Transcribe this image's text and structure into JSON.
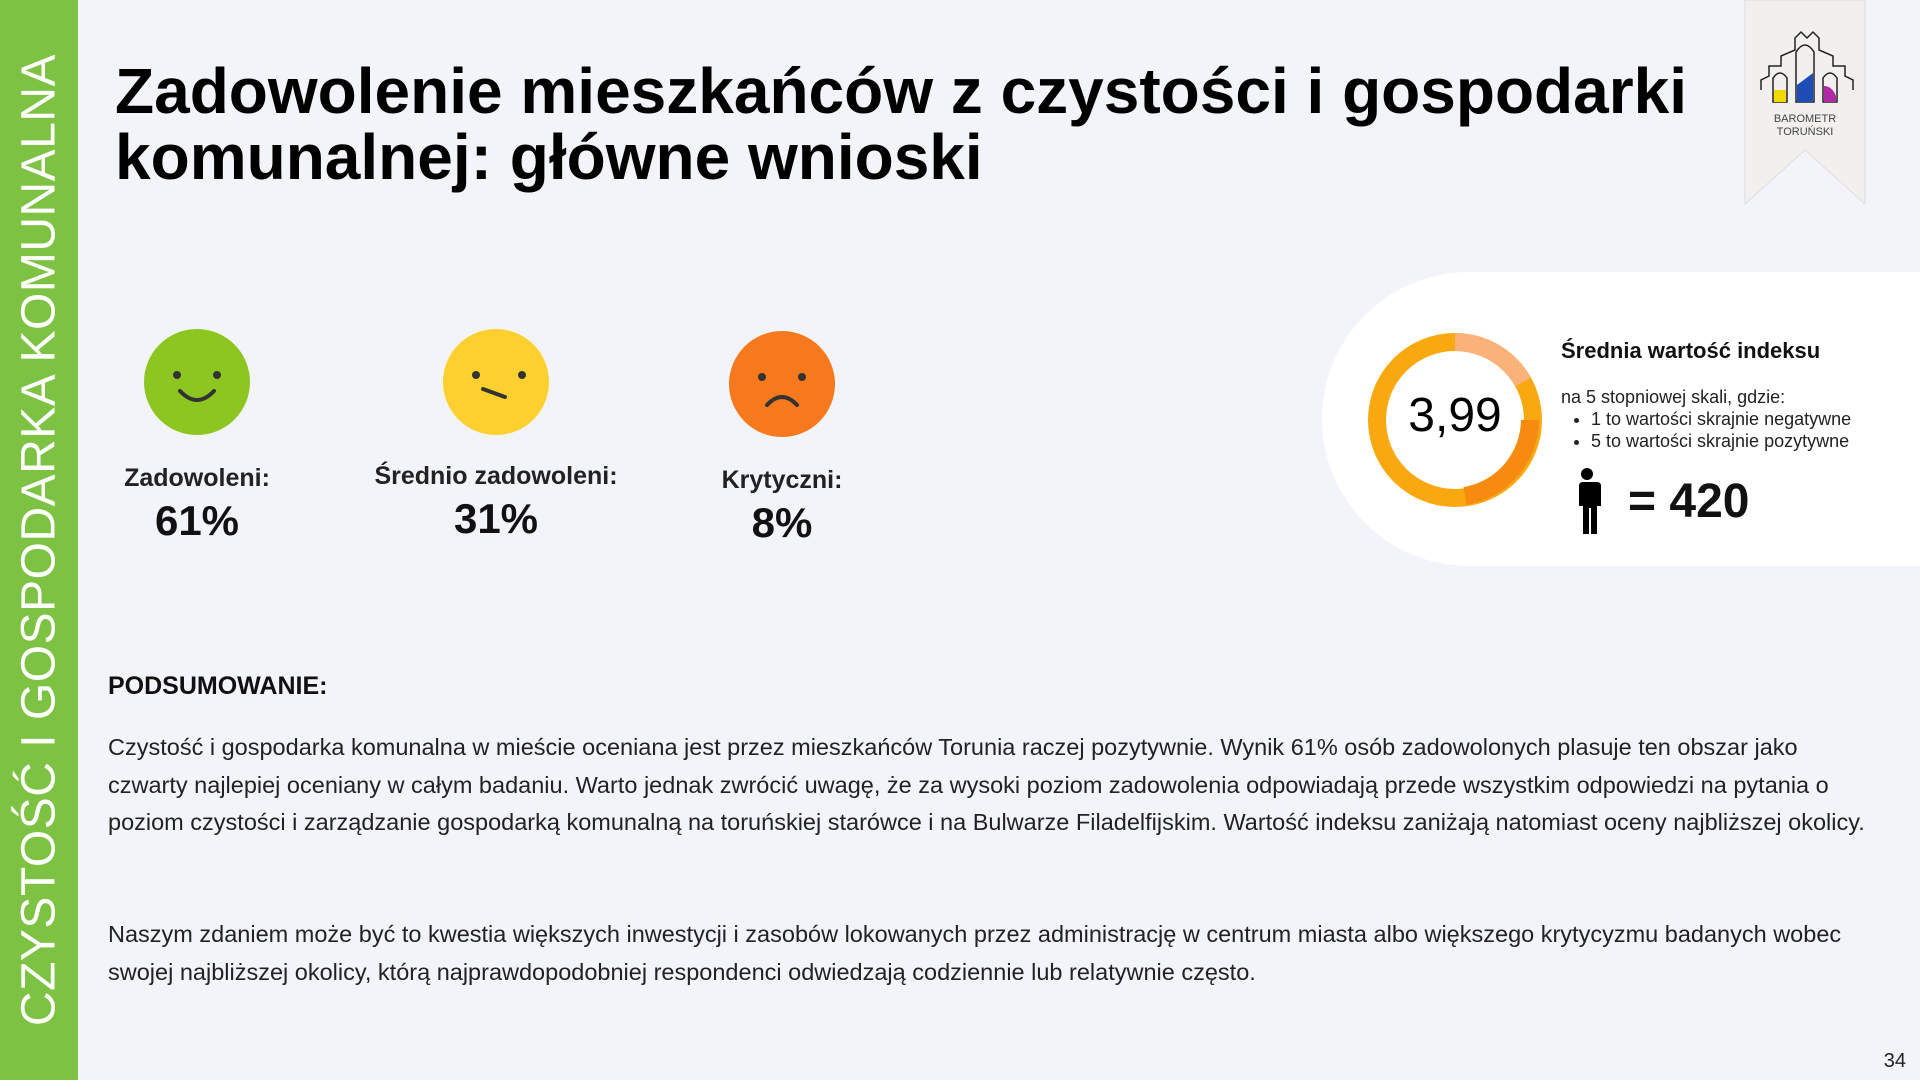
{
  "sidebar": {
    "label": "CZYSTOŚĆ I GOSPODARKA KOMUNALNA"
  },
  "title": "Zadowolenie mieszkańców z czystości i gospodarki komunalnej: główne wnioski",
  "logo": {
    "line1": "BAROMETR",
    "line2": "TORUŃSKI"
  },
  "metrics": [
    {
      "label": "Zadowoleni:",
      "value": "61%",
      "icon": "happy-face-icon",
      "color": "#8dc521"
    },
    {
      "label": "Średnio zadowoleni:",
      "value": "31%",
      "icon": "neutral-face-icon",
      "color": "#fdd02f"
    },
    {
      "label": "Krytyczni:",
      "value": "8%",
      "icon": "sad-face-icon",
      "color": "#f7791e"
    }
  ],
  "index": {
    "value": "3,99",
    "title": "Średnia wartość indeksu",
    "desc": "na 5 stopniowej skali, gdzie:",
    "bullets": [
      "1 to wartości skrajnie negatywne",
      "5 to wartości skrajnie pozytywne"
    ],
    "sample": "= 420"
  },
  "summary": {
    "heading": "PODSUMOWANIE:",
    "p1": "Czystość i gospodarka komunalna w mieście oceniana jest przez mieszkańców Torunia raczej pozytywnie. Wynik 61% osób zadowolonych plasuje ten obszar jako czwarty najlepiej oceniany w całym badaniu. Warto jednak zwrócić uwagę, że za wysoki poziom zadowolenia odpowiadają przede wszystkim odpowiedzi na pytania o poziom czystości i zarządzanie gospodarką komunalną na toruńskiej starówce i na Bulwarze Filadelfijskim. Wartość indeksu zaniżają natomiast oceny najbliższej okolicy.",
    "p2": "Naszym zdaniem może być to kwestia większych inwestycji i zasobów lokowanych przez administrację w centrum miasta albo większego krytycyzmu badanych wobec swojej najbliższej okolicy, którą najprawdopodobniej respondenci odwiedzają codziennie lub relatywnie często."
  },
  "page_number": "34"
}
